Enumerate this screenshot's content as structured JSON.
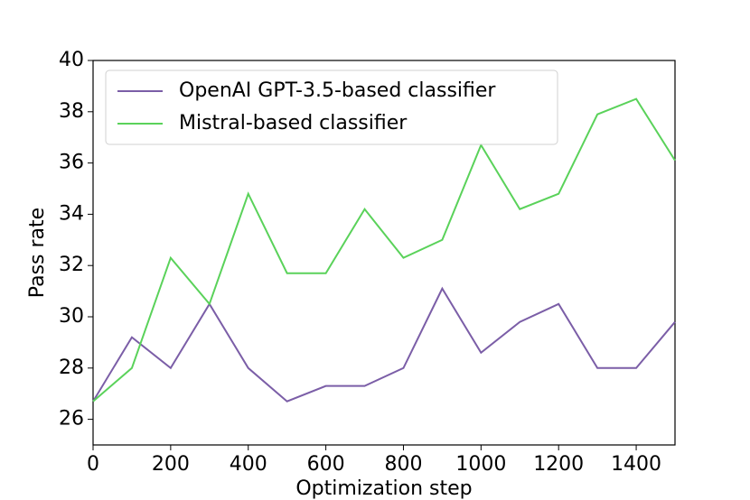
{
  "chart_data": {
    "type": "line",
    "x_label": "Optimization step",
    "y_label": "Pass rate",
    "x": [
      0,
      100,
      200,
      300,
      400,
      500,
      600,
      700,
      800,
      900,
      1000,
      1100,
      1200,
      1300,
      1400,
      1500
    ],
    "series": [
      {
        "name": "OpenAI GPT-3.5-based classifier",
        "color": "#7b5ea7",
        "values": [
          26.7,
          29.2,
          28.0,
          30.5,
          28.0,
          26.7,
          27.3,
          27.3,
          28.0,
          31.1,
          28.6,
          29.8,
          30.5,
          28.0,
          28.0,
          29.8
        ]
      },
      {
        "name": "Mistral-based classifier",
        "color": "#5ad25a",
        "values": [
          26.7,
          28.0,
          32.3,
          30.5,
          34.8,
          31.7,
          31.7,
          34.2,
          32.3,
          33.0,
          36.7,
          34.2,
          34.8,
          37.9,
          38.5,
          36.1
        ]
      }
    ],
    "xlim": [
      0,
      1500
    ],
    "xticks": [
      0,
      200,
      400,
      600,
      800,
      1000,
      1200,
      1400
    ],
    "ylim": [
      25,
      40
    ],
    "yticks": [
      26,
      28,
      30,
      32,
      34,
      36,
      38,
      40
    ],
    "legend": "upper left",
    "grid": false
  }
}
